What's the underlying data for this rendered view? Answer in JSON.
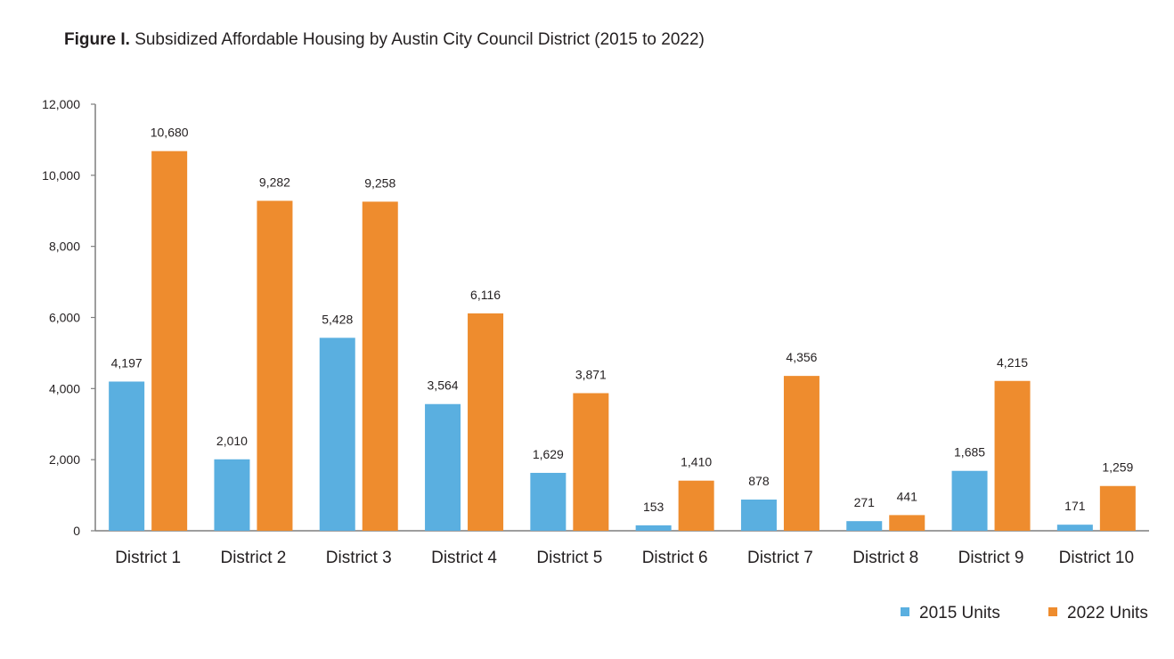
{
  "figure": {
    "title_prefix": "Figure I.",
    "title_text": "Subsidized Affordable Housing by Austin City Council District (2015 to 2022)"
  },
  "colors": {
    "series_2015": "#5aafe0",
    "series_2022": "#ee8c2e",
    "axis": "#7f7f7f"
  },
  "chart_data": {
    "type": "bar",
    "title": "Figure I. Subsidized Affordable Housing by Austin City Council District (2015 to 2022)",
    "categories": [
      "District 1",
      "District 2",
      "District 3",
      "District 4",
      "District 5",
      "District 6",
      "District 7",
      "District 8",
      "District 9",
      "District 10"
    ],
    "series": [
      {
        "name": "2015 Units",
        "values": [
          4197,
          2010,
          5428,
          3564,
          1629,
          153,
          878,
          271,
          1685,
          171
        ]
      },
      {
        "name": "2022 Units",
        "values": [
          10680,
          9282,
          9258,
          6116,
          3871,
          1410,
          4356,
          441,
          4215,
          1259
        ]
      }
    ],
    "data_labels": [
      [
        "4,197",
        "2,010",
        "5,428",
        "3,564",
        "1,629",
        "153",
        "878",
        "271",
        "1,685",
        "171"
      ],
      [
        "10,680",
        "9,282",
        "9,258",
        "6,116",
        "3,871",
        "1,410",
        "4,356",
        "441",
        "4,215",
        "1,259"
      ]
    ],
    "yticks": [
      0,
      2000,
      4000,
      6000,
      8000,
      10000,
      12000
    ],
    "ytick_labels": [
      "0",
      "2,000",
      "4,000",
      "6,000",
      "8,000",
      "10,000",
      "12,000"
    ],
    "ylim": [
      0,
      12000
    ],
    "xlabel": "",
    "ylabel": "",
    "grid": false,
    "legend_position": "bottom-right"
  }
}
